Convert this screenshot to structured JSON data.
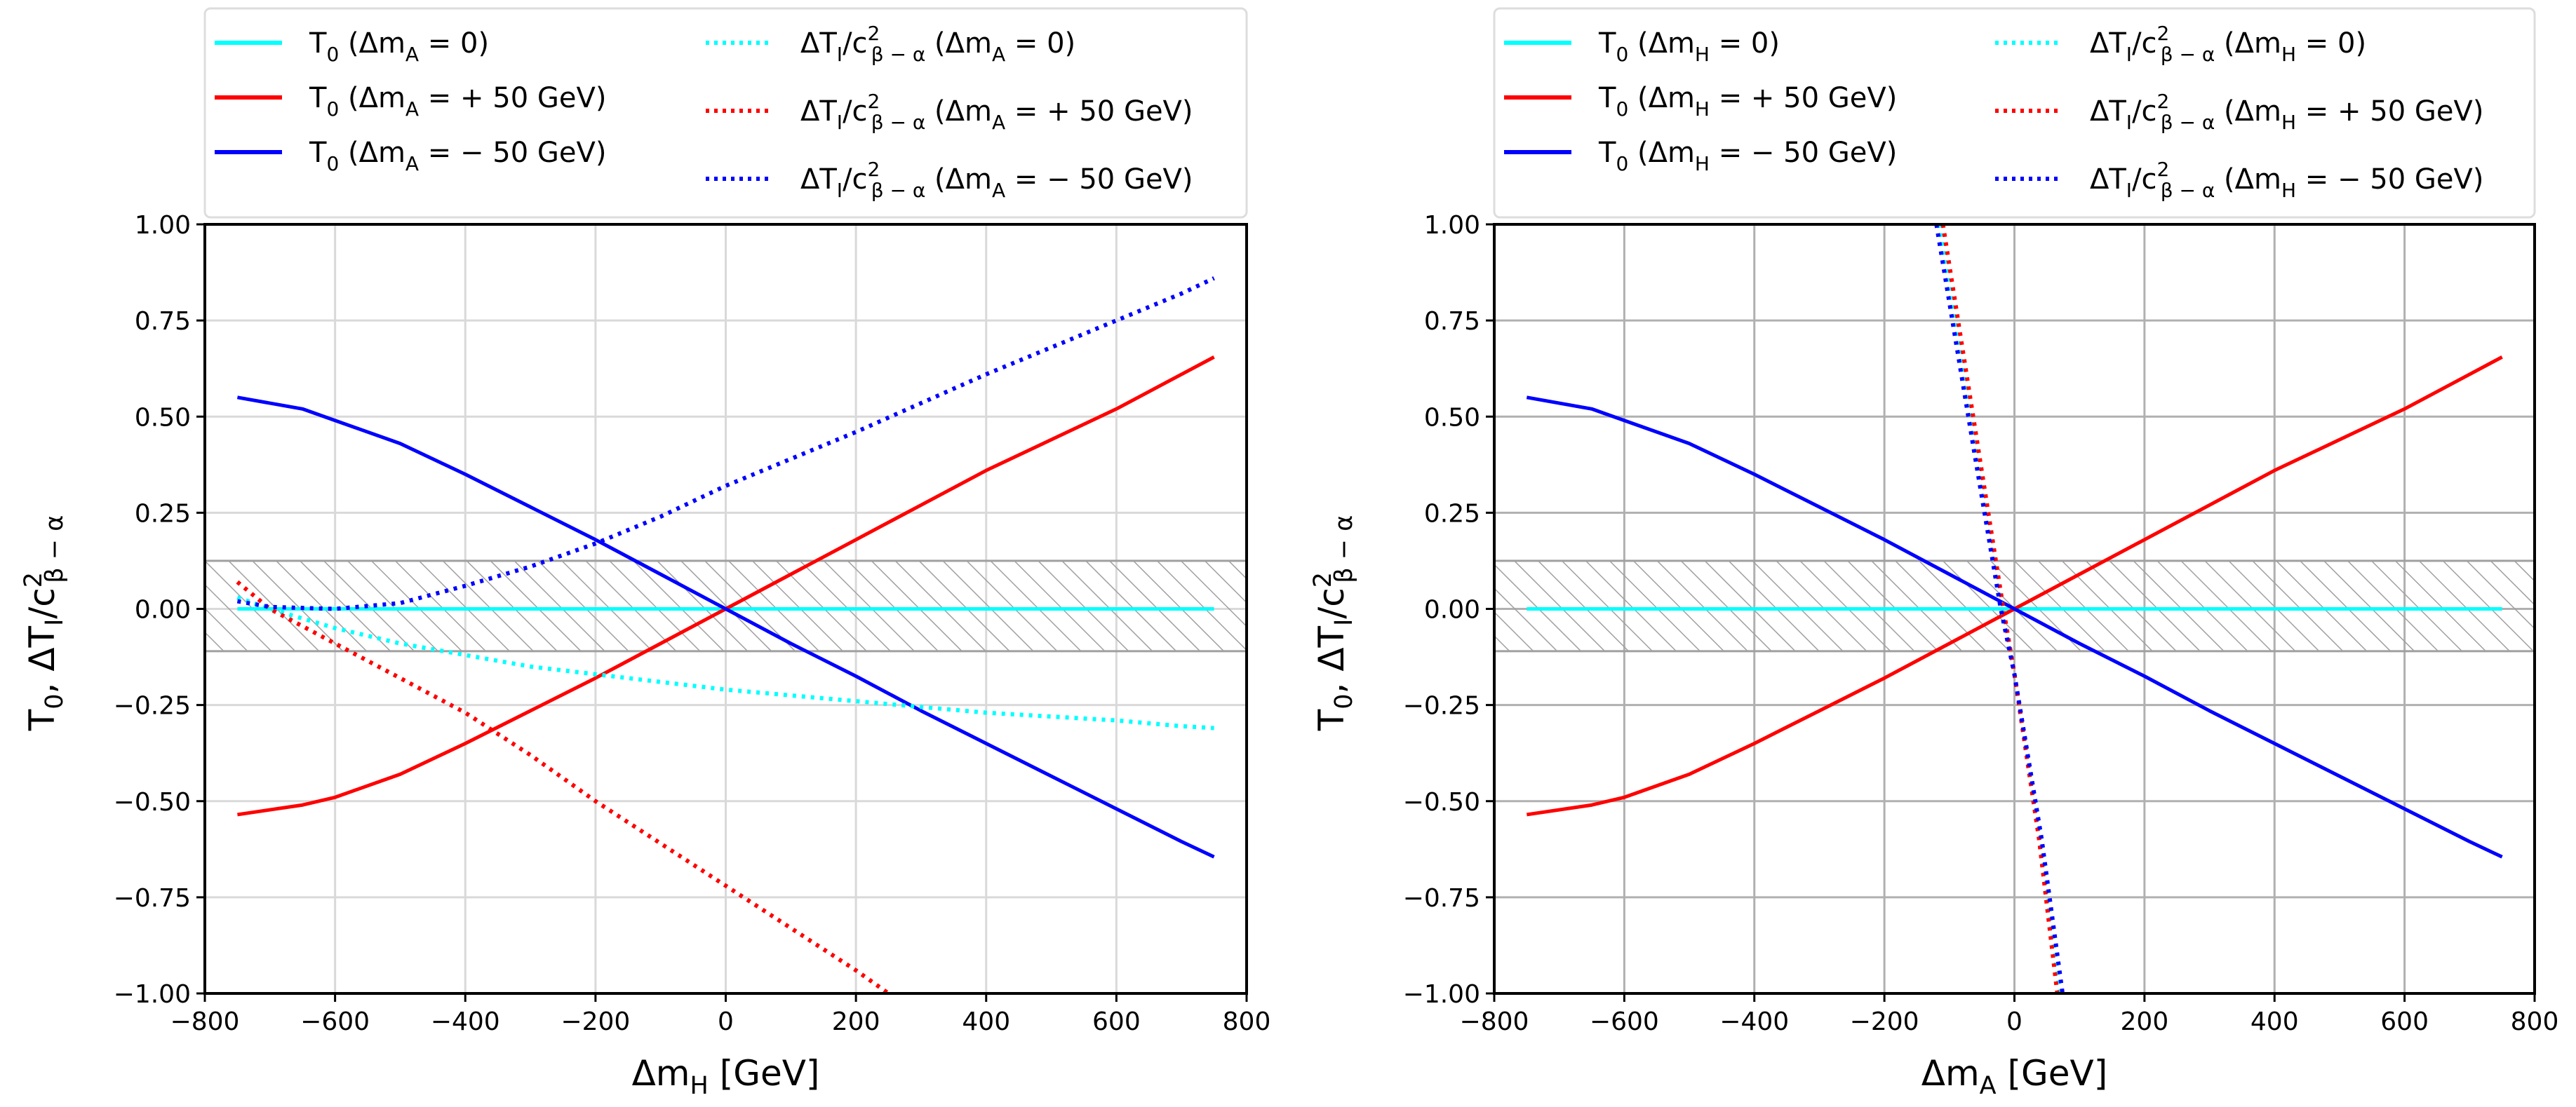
{
  "chart_data": [
    {
      "type": "line",
      "xlabel": "Δm_{H} [GeV]",
      "ylabel": "T_{0},  ΔT_{I}/c^{2}_{β − α}",
      "xlim": [
        -800,
        800
      ],
      "ylim": [
        -1.0,
        1.0
      ],
      "xticks": [
        "−800",
        "−600",
        "−400",
        "−200",
        "0",
        "200",
        "400",
        "600",
        "800"
      ],
      "yticks": [
        "−1.00",
        "−0.75",
        "−0.50",
        "−0.25",
        "0.00",
        "0.25",
        "0.50",
        "0.75",
        "1.00"
      ],
      "grid": true,
      "grid_color": "#d9d9d9",
      "legend_placement": "above plot, two columns",
      "shaded_band": {
        "y": [
          -0.11,
          0.125
        ],
        "style": "hatched",
        "color": "#a0a0a0"
      },
      "series": [
        {
          "name": "T_{0} (Δm_{A} = 0)",
          "color": "#00ffff",
          "style": "solid",
          "x": [
            -750,
            750
          ],
          "y": [
            0,
            0
          ]
        },
        {
          "name": "T_{0} (Δm_{A} = + 50 GeV)",
          "color": "#ff0000",
          "style": "solid",
          "x": [
            -750,
            -650,
            -600,
            -500,
            -400,
            -300,
            -200,
            -100,
            0,
            100,
            200,
            300,
            400,
            500,
            600,
            700,
            750
          ],
          "y": [
            -0.535,
            -0.51,
            -0.49,
            -0.43,
            -0.35,
            -0.265,
            -0.18,
            -0.09,
            0,
            0.09,
            0.18,
            0.27,
            0.36,
            0.44,
            0.52,
            0.61,
            0.655
          ]
        },
        {
          "name": "T_{0} (Δm_{A} = − 50 GeV)",
          "color": "#0000ff",
          "style": "solid",
          "x": [
            -750,
            -650,
            -600,
            -500,
            -400,
            -300,
            -200,
            -100,
            0,
            100,
            200,
            300,
            400,
            500,
            600,
            700,
            750
          ],
          "y": [
            0.55,
            0.52,
            0.49,
            0.43,
            0.35,
            0.265,
            0.18,
            0.09,
            0,
            -0.09,
            -0.175,
            -0.265,
            -0.35,
            -0.435,
            -0.52,
            -0.605,
            -0.645
          ]
        },
        {
          "name": "ΔT_{I}/c^{2}_{β − α} (Δm_{A} = 0)",
          "color": "#00ffff",
          "style": "dotted",
          "x": [
            -750,
            -700,
            -600,
            -500,
            -400,
            -300,
            -200,
            -100,
            0,
            100,
            200,
            300,
            400,
            500,
            600,
            700,
            750
          ],
          "y": [
            0.03,
            0.0,
            -0.05,
            -0.09,
            -0.12,
            -0.15,
            -0.17,
            -0.19,
            -0.21,
            -0.225,
            -0.24,
            -0.255,
            -0.27,
            -0.28,
            -0.29,
            -0.305,
            -0.31
          ]
        },
        {
          "name": "ΔT_{I}/c^{2}_{β − α} (Δm_{A} = + 50 GeV)",
          "color": "#ff0000",
          "style": "dotted",
          "x": [
            -750,
            -700,
            -600,
            -500,
            -400,
            -300,
            -200,
            -100,
            0,
            100,
            200,
            250
          ],
          "y": [
            0.07,
            0.0,
            -0.09,
            -0.18,
            -0.27,
            -0.38,
            -0.5,
            -0.61,
            -0.72,
            -0.83,
            -0.94,
            -1.0
          ]
        },
        {
          "name": "ΔT_{I}/c^{2}_{β − α} (Δm_{A} = − 50 GeV)",
          "color": "#0000ff",
          "style": "dotted",
          "x": [
            -750,
            -700,
            -600,
            -500,
            -400,
            -300,
            -200,
            -100,
            0,
            100,
            200,
            300,
            400,
            500,
            600,
            700,
            750
          ],
          "y": [
            0.02,
            0.005,
            0.0,
            0.015,
            0.06,
            0.11,
            0.17,
            0.24,
            0.32,
            0.39,
            0.46,
            0.535,
            0.61,
            0.68,
            0.75,
            0.82,
            0.86
          ]
        }
      ]
    },
    {
      "type": "line",
      "xlabel": "Δm_{A} [GeV]",
      "ylabel": "T_{0},  ΔT_{I}/c^{2}_{β − α}",
      "xlim": [
        -800,
        800
      ],
      "ylim": [
        -1.0,
        1.0
      ],
      "xticks": [
        "−800",
        "−600",
        "−400",
        "−200",
        "0",
        "200",
        "400",
        "600",
        "800"
      ],
      "yticks": [
        "−1.00",
        "−0.75",
        "−0.50",
        "−0.25",
        "0.00",
        "0.25",
        "0.50",
        "0.75",
        "1.00"
      ],
      "grid": true,
      "grid_color": "#b0b0b0",
      "legend_placement": "above plot, two columns",
      "shaded_band": {
        "y": [
          -0.11,
          0.125
        ],
        "style": "hatched",
        "color": "#a0a0a0"
      },
      "series": [
        {
          "name": "T_{0} (Δm_{H} = 0)",
          "color": "#00ffff",
          "style": "solid",
          "x": [
            -750,
            750
          ],
          "y": [
            0,
            0
          ]
        },
        {
          "name": "T_{0} (Δm_{H} = + 50 GeV)",
          "color": "#ff0000",
          "style": "solid",
          "x": [
            -750,
            -650,
            -600,
            -500,
            -400,
            -300,
            -200,
            -100,
            0,
            100,
            200,
            300,
            400,
            500,
            600,
            700,
            750
          ],
          "y": [
            -0.535,
            -0.51,
            -0.49,
            -0.43,
            -0.35,
            -0.265,
            -0.18,
            -0.09,
            0,
            0.09,
            0.18,
            0.27,
            0.36,
            0.44,
            0.52,
            0.61,
            0.655
          ]
        },
        {
          "name": "T_{0} (Δm_{H} = − 50 GeV)",
          "color": "#0000ff",
          "style": "solid",
          "x": [
            -750,
            -650,
            -600,
            -500,
            -400,
            -300,
            -200,
            -100,
            0,
            100,
            200,
            300,
            400,
            500,
            600,
            700,
            750
          ],
          "y": [
            0.55,
            0.52,
            0.49,
            0.43,
            0.35,
            0.265,
            0.18,
            0.09,
            0,
            -0.09,
            -0.175,
            -0.265,
            -0.35,
            -0.435,
            -0.52,
            -0.605,
            -0.645
          ]
        },
        {
          "name": "ΔT_{I}/c^{2}_{β − α} (Δm_{H} = 0)",
          "color": "#00ffff",
          "style": "dotted",
          "x": [
            -116,
            -60,
            -19,
            0,
            40,
            70
          ],
          "y": [
            1.0,
            0.42,
            0.0,
            -0.17,
            -0.6,
            -1.0
          ]
        },
        {
          "name": "ΔT_{I}/c^{2}_{β − α} (Δm_{H} = + 50 GeV)",
          "color": "#ff0000",
          "style": "dotted",
          "x": [
            -110,
            -56,
            -17,
            0,
            38,
            66
          ],
          "y": [
            1.0,
            0.42,
            0.0,
            -0.17,
            -0.6,
            -1.0
          ]
        },
        {
          "name": "ΔT_{I}/c^{2}_{β − α} (Δm_{H} = − 50 GeV)",
          "color": "#0000ff",
          "style": "dotted",
          "x": [
            -120,
            -63,
            -21,
            0,
            42,
            74
          ],
          "y": [
            1.0,
            0.42,
            0.0,
            -0.17,
            -0.6,
            -1.0
          ]
        }
      ]
    }
  ]
}
